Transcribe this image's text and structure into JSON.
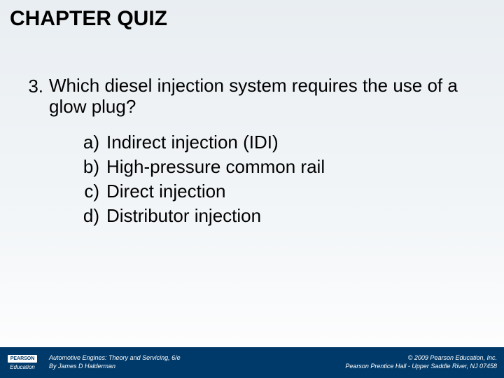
{
  "title": "CHAPTER QUIZ",
  "question": {
    "number": "3.",
    "text": "Which diesel injection system requires the use of a glow plug?"
  },
  "options": [
    {
      "letter": "a)",
      "text": "Indirect injection (IDI)"
    },
    {
      "letter": "b)",
      "text": "High-pressure common rail"
    },
    {
      "letter": "c)",
      "text": "Direct injection"
    },
    {
      "letter": "d)",
      "text": "Distributor injection"
    }
  ],
  "footer": {
    "logo_top": "PEARSON",
    "logo_bottom": "Education",
    "left_line1": "Automotive Engines: Theory and Servicing, 6/e",
    "left_line2": "By James D Halderman",
    "right_line1": "© 2009 Pearson Education, Inc.",
    "right_line2": "Pearson Prentice Hall - Upper Saddle River, NJ 07458"
  },
  "colors": {
    "footer_bg": "#003a6a",
    "text": "#000000",
    "bg_top": "#e9eef2",
    "bg_bottom": "#ffffff"
  }
}
